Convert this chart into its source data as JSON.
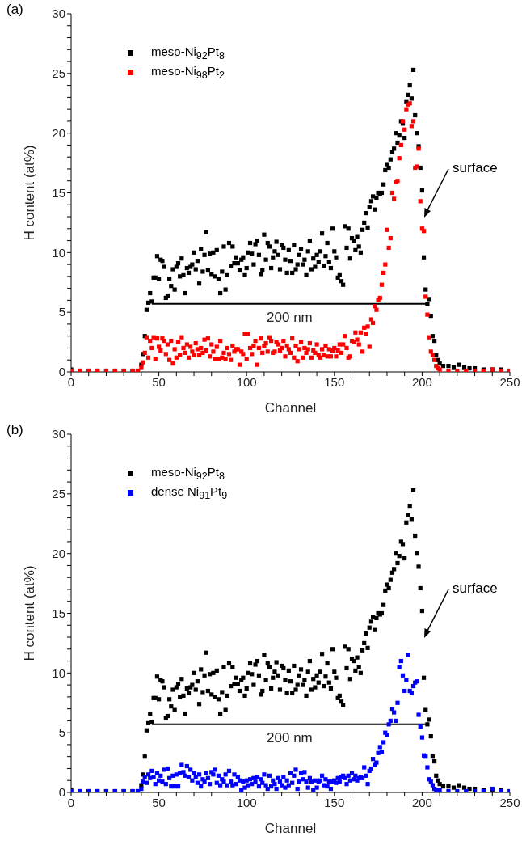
{
  "chart_data": [
    {
      "type": "scatter",
      "xlabel": "Channel",
      "ylabel": "H content (at%)",
      "xlim": [
        0,
        250
      ],
      "ylim": [
        0,
        30
      ],
      "xticks": [
        0,
        {
          "value": 10,
          "label": null
        },
        {
          "value": 20,
          "label": null
        },
        {
          "value": 30,
          "label": null
        },
        {
          "value": 40,
          "label": null
        },
        50,
        {
          "value": 60,
          "label": null
        },
        {
          "value": 70,
          "label": null
        },
        {
          "value": 80,
          "label": null
        },
        {
          "value": 90,
          "label": null
        },
        100,
        {
          "value": 110,
          "label": null
        },
        {
          "value": 120,
          "label": null
        },
        {
          "value": 130,
          "label": null
        },
        {
          "value": 140,
          "label": null
        },
        150,
        {
          "value": 160,
          "label": null
        },
        {
          "value": 170,
          "label": null
        },
        {
          "value": 180,
          "label": null
        },
        {
          "value": 190,
          "label": null
        },
        200,
        {
          "value": 210,
          "label": null
        },
        {
          "value": 220,
          "label": null
        },
        {
          "value": 230,
          "label": null
        },
        {
          "value": 240,
          "label": null
        },
        250
      ],
      "yticks": [
        0,
        {
          "value": 1,
          "label": null
        },
        {
          "value": 2,
          "label": null
        },
        {
          "value": 3,
          "label": null
        },
        {
          "value": 4,
          "label": null
        },
        5,
        {
          "value": 6,
          "label": null
        },
        {
          "value": 7,
          "label": null
        },
        {
          "value": 8,
          "label": null
        },
        {
          "value": 9,
          "label": null
        },
        10,
        {
          "value": 11,
          "label": null
        },
        {
          "value": 12,
          "label": null
        },
        {
          "value": 13,
          "label": null
        },
        {
          "value": 14,
          "label": null
        },
        15,
        {
          "value": 16,
          "label": null
        },
        {
          "value": 17,
          "label": null
        },
        {
          "value": 18,
          "label": null
        },
        {
          "value": 19,
          "label": null
        },
        20,
        {
          "value": 21,
          "label": null
        },
        {
          "value": 22,
          "label": null
        },
        {
          "value": 23,
          "label": null
        },
        {
          "value": 24,
          "label": null
        },
        25,
        {
          "value": 26,
          "label": null
        },
        {
          "value": 27,
          "label": null
        },
        {
          "value": 28,
          "label": null
        },
        {
          "value": 29,
          "label": null
        },
        30
      ],
      "legend": "top left",
      "marker": "square",
      "annotations": [
        "(a)",
        "surface"
      ],
      "series": [
        {
          "name": "meso-Ni$_{92}$Pt$_{8}$",
          "color": "#000000",
          "x": [
            0,
            5,
            10,
            15,
            20,
            25,
            30,
            35,
            38,
            40,
            41,
            42,
            43,
            44,
            45,
            46,
            47,
            48,
            49,
            50,
            51,
            52,
            53,
            54,
            55,
            56,
            57,
            58,
            59,
            60,
            61,
            62,
            63,
            64,
            65,
            66,
            67,
            68,
            69,
            70,
            71,
            72,
            73,
            74,
            75,
            76,
            77,
            78,
            79,
            80,
            81,
            82,
            83,
            84,
            85,
            86,
            87,
            88,
            89,
            90,
            91,
            92,
            93,
            94,
            95,
            96,
            97,
            98,
            99,
            100,
            101,
            102,
            103,
            104,
            105,
            106,
            107,
            108,
            109,
            110,
            111,
            112,
            113,
            114,
            115,
            116,
            117,
            118,
            119,
            120,
            121,
            122,
            123,
            124,
            125,
            126,
            127,
            128,
            129,
            130,
            131,
            132,
            133,
            134,
            135,
            136,
            137,
            138,
            139,
            140,
            141,
            142,
            143,
            144,
            145,
            146,
            147,
            148,
            149,
            150,
            151,
            152,
            153,
            154,
            155,
            156,
            157,
            158,
            159,
            160,
            161,
            162,
            163,
            164,
            165,
            166,
            167,
            168,
            169,
            170,
            171,
            172,
            173,
            174,
            175,
            176,
            177,
            178,
            179,
            180,
            181,
            182,
            183,
            184,
            185,
            186,
            187,
            188,
            189,
            190,
            191,
            192,
            193,
            194,
            195,
            196,
            197,
            198,
            199,
            200,
            201,
            202,
            203,
            204,
            205,
            206,
            207,
            208,
            209,
            210,
            212,
            215,
            218,
            221,
            224,
            227,
            230,
            235,
            240,
            245,
            250
          ],
          "values": [
            0.2,
            0.1,
            0.1,
            0.1,
            0.1,
            0.1,
            0.1,
            0.1,
            0.1,
            0.6,
            1.5,
            3.0,
            5.2,
            5.8,
            6.6,
            5.9,
            7.9,
            7.9,
            9.7,
            7.8,
            9.4,
            9.3,
            8.8,
            6.2,
            6.4,
            7.8,
            7.2,
            8.6,
            6.9,
            8.8,
            9.1,
            8.0,
            9.5,
            8.1,
            6.6,
            8.7,
            8.3,
            8.8,
            9.0,
            10.0,
            8.6,
            9.3,
            7.4,
            10.3,
            8.4,
            9.8,
            11.7,
            8.5,
            9.9,
            8.2,
            10.0,
            8.0,
            10.2,
            7.8,
            6.6,
            8.4,
            10.5,
            6.9,
            8.1,
            10.8,
            8.9,
            10.5,
            9.1,
            9.6,
            9.1,
            8.5,
            9.4,
            9.6,
            8.1,
            8.7,
            10.0,
            10.8,
            9.9,
            9.0,
            10.7,
            11.0,
            9.8,
            8.2,
            8.5,
            11.5,
            9.4,
            10.8,
            10.5,
            8.7,
            9.6,
            10.1,
            10.9,
            9.8,
            8.6,
            10.6,
            10.4,
            9.4,
            8.3,
            10.2,
            9.3,
            8.3,
            10.6,
            8.6,
            9.0,
            9.8,
            10.3,
            9.0,
            9.4,
            8.1,
            10.1,
            11.0,
            8.6,
            9.5,
            8.8,
            9.8,
            9.2,
            10.1,
            11.6,
            8.9,
            9.7,
            10.8,
            9.2,
            8.7,
            12.0,
            10.1,
            9.6,
            7.9,
            8.1,
            7.6,
            7.3,
            12.2,
            10.4,
            12.0,
            9.5,
            11.2,
            11.0,
            10.2,
            11.3,
            10.5,
            10.0,
            11.9,
            12.5,
            13.3,
            12.1,
            13.8,
            14.3,
            14.7,
            13.6,
            14.6,
            15.0,
            14.9,
            15.0,
            15.7,
            16.9,
            17.4,
            17.1,
            17.8,
            18.4,
            18.7,
            20.0,
            19.2,
            19.8,
            21.0,
            20.8,
            19.6,
            22.6,
            23.2,
            24.0,
            22.9,
            25.3,
            21.5,
            20.0,
            18.9,
            17.1,
            15.2,
            9.6,
            6.9,
            5.7,
            6.1,
            4.7,
            3.0,
            2.6,
            1.4,
            1.0,
            0.7,
            0.5,
            0.5,
            0.4,
            0.6,
            0.4,
            0.3,
            0.3,
            0.2,
            0.2,
            0.2,
            0.1
          ]
        },
        {
          "name": "meso-Ni$_{98}$Pt$_{2}$",
          "color": "#ff0000",
          "x": [
            0,
            5,
            10,
            15,
            20,
            25,
            30,
            35,
            38,
            40,
            41,
            42,
            43,
            44,
            45,
            46,
            47,
            48,
            49,
            50,
            51,
            52,
            53,
            54,
            55,
            56,
            57,
            58,
            59,
            60,
            61,
            62,
            63,
            64,
            65,
            66,
            67,
            68,
            69,
            70,
            71,
            72,
            73,
            74,
            75,
            76,
            77,
            78,
            79,
            80,
            81,
            82,
            83,
            84,
            85,
            86,
            87,
            88,
            89,
            90,
            91,
            92,
            93,
            94,
            95,
            96,
            97,
            98,
            99,
            100,
            101,
            102,
            103,
            104,
            105,
            106,
            107,
            108,
            109,
            110,
            111,
            112,
            113,
            114,
            115,
            116,
            117,
            118,
            119,
            120,
            121,
            122,
            123,
            124,
            125,
            126,
            127,
            128,
            129,
            130,
            131,
            132,
            133,
            134,
            135,
            136,
            137,
            138,
            139,
            140,
            141,
            142,
            143,
            144,
            145,
            146,
            147,
            148,
            149,
            150,
            151,
            152,
            153,
            154,
            155,
            156,
            157,
            158,
            159,
            160,
            161,
            162,
            163,
            164,
            165,
            166,
            167,
            168,
            169,
            170,
            171,
            172,
            173,
            174,
            175,
            176,
            177,
            178,
            179,
            180,
            181,
            182,
            183,
            184,
            185,
            186,
            187,
            188,
            189,
            190,
            191,
            192,
            193,
            194,
            195,
            196,
            197,
            198,
            199,
            200,
            201,
            202,
            203,
            204,
            205,
            206,
            207,
            208,
            209,
            210,
            215,
            220,
            225,
            230,
            235,
            240,
            245,
            250
          ],
          "values": [
            0.1,
            0.1,
            0.1,
            0.1,
            0.1,
            0.1,
            0.1,
            0.1,
            0.1,
            0.4,
            0.8,
            1.6,
            2.9,
            1.2,
            2.6,
            2.0,
            2.9,
            1.1,
            2.8,
            2.1,
            1.8,
            2.8,
            2.6,
            1.5,
            2.3,
            1.0,
            2.6,
            0.7,
            1.9,
            1.2,
            2.5,
            1.4,
            2.9,
            2.0,
            1.6,
            2.3,
            1.2,
            2.1,
            1.7,
            1.4,
            2.4,
            1.9,
            1.4,
            2.0,
            1.6,
            2.7,
            1.8,
            2.8,
            1.3,
            2.3,
            1.7,
            1.1,
            2.1,
            1.1,
            2.6,
            1.2,
            1.6,
            1.1,
            2.0,
            1.5,
            1.0,
            2.2,
            1.7,
            1.9,
            1.9,
            0.6,
            1.7,
            1.5,
            3.2,
            1.1,
            3.2,
            2.0,
            1.5,
            2.2,
            2.6,
            0.6,
            2.0,
            2.8,
            1.6,
            2.2,
            2.4,
            1.7,
            2.9,
            2.6,
            1.6,
            1.7,
            2.5,
            2.3,
            1.8,
            2.0,
            2.6,
            1.3,
            2.2,
            1.9,
            1.6,
            2.8,
            1.2,
            2.2,
            0.9,
            1.9,
            2.5,
            1.2,
            2.0,
            1.6,
            1.9,
            2.4,
            1.2,
            1.8,
            1.6,
            2.3,
            1.4,
            1.2,
            1.9,
            1.4,
            2.2,
            1.3,
            1.9,
            1.3,
            1.8,
            2.0,
            1.3,
            1.8,
            2.3,
            1.6,
            2.3,
            3.0,
            2.0,
            1.2,
            1.3,
            2.6,
            2.5,
            3.3,
            2.7,
            2.3,
            3.3,
            1.7,
            3.7,
            3.2,
            3.8,
            2.1,
            4.4,
            4.1,
            5.5,
            5.2,
            6.0,
            6.2,
            7.3,
            8.3,
            9.0,
            11.9,
            10.4,
            11.2,
            15.0,
            14.5,
            15.9,
            16.0,
            17.9,
            19.0,
            21.0,
            20.3,
            22.0,
            22.4,
            22.5,
            20.6,
            21.0,
            17.1,
            17.2,
            18.7,
            14.3,
            12.0,
            11.8,
            6.3,
            4.8,
            2.9,
            1.7,
            1.4,
            1.0,
            0.5,
            0.3,
            0.2,
            0.1,
            0.1,
            0.1,
            0.1,
            0.1,
            0.2,
            0.1,
            0.1
          ]
        },
        {
          "type": "line",
          "name": "200 nm",
          "color": "#000000",
          "marker": "none",
          "x": [
            46,
            203
          ],
          "values": [
            5.7,
            5.7
          ]
        }
      ]
    },
    {
      "type": "scatter",
      "xlabel": "Channel",
      "ylabel": "H content (at%)",
      "xlim": [
        0,
        250
      ],
      "ylim": [
        0,
        30
      ],
      "xticks": [
        0,
        {
          "value": 10,
          "label": null
        },
        {
          "value": 20,
          "label": null
        },
        {
          "value": 30,
          "label": null
        },
        {
          "value": 40,
          "label": null
        },
        50,
        {
          "value": 60,
          "label": null
        },
        {
          "value": 70,
          "label": null
        },
        {
          "value": 80,
          "label": null
        },
        {
          "value": 90,
          "label": null
        },
        100,
        {
          "value": 110,
          "label": null
        },
        {
          "value": 120,
          "label": null
        },
        {
          "value": 130,
          "label": null
        },
        {
          "value": 140,
          "label": null
        },
        150,
        {
          "value": 160,
          "label": null
        },
        {
          "value": 170,
          "label": null
        },
        {
          "value": 180,
          "label": null
        },
        {
          "value": 190,
          "label": null
        },
        200,
        {
          "value": 210,
          "label": null
        },
        {
          "value": 220,
          "label": null
        },
        {
          "value": 230,
          "label": null
        },
        {
          "value": 240,
          "label": null
        },
        250
      ],
      "yticks": [
        0,
        {
          "value": 1,
          "label": null
        },
        {
          "value": 2,
          "label": null
        },
        {
          "value": 3,
          "label": null
        },
        {
          "value": 4,
          "label": null
        },
        5,
        {
          "value": 6,
          "label": null
        },
        {
          "value": 7,
          "label": null
        },
        {
          "value": 8,
          "label": null
        },
        {
          "value": 9,
          "label": null
        },
        10,
        {
          "value": 11,
          "label": null
        },
        {
          "value": 12,
          "label": null
        },
        {
          "value": 13,
          "label": null
        },
        {
          "value": 14,
          "label": null
        },
        15,
        {
          "value": 16,
          "label": null
        },
        {
          "value": 17,
          "label": null
        },
        {
          "value": 18,
          "label": null
        },
        {
          "value": 19,
          "label": null
        },
        20,
        {
          "value": 21,
          "label": null
        },
        {
          "value": 22,
          "label": null
        },
        {
          "value": 23,
          "label": null
        },
        {
          "value": 24,
          "label": null
        },
        25,
        {
          "value": 26,
          "label": null
        },
        {
          "value": 27,
          "label": null
        },
        {
          "value": 28,
          "label": null
        },
        {
          "value": 29,
          "label": null
        },
        30
      ],
      "legend": "top left",
      "marker": "square",
      "annotations": [
        "(b)",
        "surface"
      ],
      "series": [
        {
          "name": "meso-Ni$_{92}$Pt$_{8}$",
          "color": "#000000",
          "x": [
            0,
            5,
            10,
            15,
            20,
            25,
            30,
            35,
            38,
            40,
            41,
            42,
            43,
            44,
            45,
            46,
            47,
            48,
            49,
            50,
            51,
            52,
            53,
            54,
            55,
            56,
            57,
            58,
            59,
            60,
            61,
            62,
            63,
            64,
            65,
            66,
            67,
            68,
            69,
            70,
            71,
            72,
            73,
            74,
            75,
            76,
            77,
            78,
            79,
            80,
            81,
            82,
            83,
            84,
            85,
            86,
            87,
            88,
            89,
            90,
            91,
            92,
            93,
            94,
            95,
            96,
            97,
            98,
            99,
            100,
            101,
            102,
            103,
            104,
            105,
            106,
            107,
            108,
            109,
            110,
            111,
            112,
            113,
            114,
            115,
            116,
            117,
            118,
            119,
            120,
            121,
            122,
            123,
            124,
            125,
            126,
            127,
            128,
            129,
            130,
            131,
            132,
            133,
            134,
            135,
            136,
            137,
            138,
            139,
            140,
            141,
            142,
            143,
            144,
            145,
            146,
            147,
            148,
            149,
            150,
            151,
            152,
            153,
            154,
            155,
            156,
            157,
            158,
            159,
            160,
            161,
            162,
            163,
            164,
            165,
            166,
            167,
            168,
            169,
            170,
            171,
            172,
            173,
            174,
            175,
            176,
            177,
            178,
            179,
            180,
            181,
            182,
            183,
            184,
            185,
            186,
            187,
            188,
            189,
            190,
            191,
            192,
            193,
            194,
            195,
            196,
            197,
            198,
            199,
            200,
            201,
            202,
            203,
            204,
            205,
            206,
            207,
            208,
            209,
            210,
            212,
            215,
            218,
            221,
            224,
            227,
            230,
            235,
            240,
            245,
            250
          ],
          "values": [
            0.2,
            0.1,
            0.1,
            0.1,
            0.1,
            0.1,
            0.1,
            0.1,
            0.1,
            0.6,
            1.5,
            3.0,
            5.2,
            5.8,
            6.6,
            5.9,
            7.9,
            7.9,
            9.7,
            7.8,
            9.4,
            9.3,
            8.8,
            6.2,
            6.4,
            7.8,
            7.2,
            8.6,
            6.9,
            8.8,
            9.1,
            8.0,
            9.5,
            8.1,
            6.6,
            8.7,
            8.3,
            8.8,
            9.0,
            10.0,
            8.6,
            9.3,
            7.4,
            10.3,
            8.4,
            9.8,
            11.7,
            8.5,
            9.9,
            8.2,
            10.0,
            8.0,
            10.2,
            7.8,
            6.6,
            8.4,
            10.5,
            6.9,
            8.1,
            10.8,
            8.9,
            10.5,
            9.1,
            9.6,
            9.1,
            8.5,
            9.4,
            9.6,
            8.1,
            8.7,
            10.0,
            10.8,
            9.9,
            9.0,
            10.7,
            11.0,
            9.8,
            8.2,
            8.5,
            11.5,
            9.4,
            10.8,
            10.5,
            8.7,
            9.6,
            10.1,
            10.9,
            9.8,
            8.6,
            10.6,
            10.4,
            9.4,
            8.3,
            10.2,
            9.3,
            8.3,
            10.6,
            8.6,
            9.0,
            9.8,
            10.3,
            9.0,
            9.4,
            8.1,
            10.1,
            11.0,
            8.6,
            9.5,
            8.8,
            9.8,
            9.2,
            10.1,
            11.6,
            8.9,
            9.7,
            10.8,
            9.2,
            8.7,
            12.0,
            10.1,
            9.6,
            7.9,
            8.1,
            7.6,
            7.3,
            12.2,
            10.4,
            12.0,
            9.5,
            11.2,
            11.0,
            10.2,
            11.3,
            10.5,
            10.0,
            11.9,
            12.5,
            13.3,
            12.1,
            13.8,
            14.3,
            14.7,
            13.6,
            14.6,
            15.0,
            14.9,
            15.0,
            15.7,
            16.9,
            17.4,
            17.1,
            17.8,
            18.4,
            18.7,
            20.0,
            19.2,
            19.8,
            21.0,
            20.8,
            19.6,
            22.6,
            23.2,
            24.0,
            22.9,
            25.3,
            21.5,
            20.0,
            18.9,
            17.1,
            15.2,
            9.6,
            6.9,
            5.7,
            6.1,
            4.7,
            3.0,
            2.6,
            1.4,
            1.0,
            0.7,
            0.5,
            0.5,
            0.4,
            0.6,
            0.4,
            0.3,
            0.3,
            0.2,
            0.2,
            0.2,
            0.1
          ]
        },
        {
          "name": "dense Ni$_{91}$Pt$_{9}$",
          "color": "#0000ff",
          "x": [
            0,
            5,
            10,
            15,
            20,
            25,
            30,
            35,
            38,
            40,
            41,
            42,
            43,
            44,
            45,
            46,
            47,
            48,
            49,
            50,
            51,
            52,
            53,
            54,
            55,
            56,
            57,
            58,
            59,
            60,
            61,
            62,
            63,
            64,
            65,
            66,
            67,
            68,
            69,
            70,
            71,
            72,
            73,
            74,
            75,
            76,
            77,
            78,
            79,
            80,
            81,
            82,
            83,
            84,
            85,
            86,
            87,
            88,
            89,
            90,
            91,
            92,
            93,
            94,
            95,
            96,
            97,
            98,
            99,
            100,
            101,
            102,
            103,
            104,
            105,
            106,
            107,
            108,
            109,
            110,
            111,
            112,
            113,
            114,
            115,
            116,
            117,
            118,
            119,
            120,
            121,
            122,
            123,
            124,
            125,
            126,
            127,
            128,
            129,
            130,
            131,
            132,
            133,
            134,
            135,
            136,
            137,
            138,
            139,
            140,
            141,
            142,
            143,
            144,
            145,
            146,
            147,
            148,
            149,
            150,
            151,
            152,
            153,
            154,
            155,
            156,
            157,
            158,
            159,
            160,
            161,
            162,
            163,
            164,
            165,
            166,
            167,
            168,
            169,
            170,
            171,
            172,
            173,
            174,
            175,
            176,
            177,
            178,
            179,
            180,
            181,
            182,
            183,
            184,
            185,
            186,
            187,
            188,
            189,
            190,
            191,
            192,
            193,
            194,
            195,
            196,
            197,
            198,
            199,
            200,
            201,
            202,
            203,
            204,
            205,
            206,
            207,
            208,
            210,
            215,
            220,
            225,
            230,
            235,
            240,
            245,
            250
          ],
          "values": [
            0.1,
            0.1,
            0.1,
            0.1,
            0.1,
            0.1,
            0.1,
            0.1,
            0.1,
            0.3,
            0.9,
            1.3,
            0.8,
            1.5,
            1.2,
            1.8,
            1.3,
            0.7,
            1.6,
            1.0,
            1.4,
            0.9,
            1.9,
            0.7,
            2.0,
            1.2,
            0.5,
            1.4,
            0.5,
            1.5,
            0.5,
            1.6,
            2.3,
            1.7,
            1.4,
            2.2,
            1.3,
            1.9,
            1.0,
            1.6,
            1.3,
            0.8,
            1.5,
            0.5,
            1.1,
            0.9,
            1.6,
            1.2,
            0.7,
            1.7,
            1.5,
            1.9,
            0.8,
            1.4,
            0.6,
            1.1,
            0.9,
            1.5,
            0.6,
            1.8,
            0.9,
            0.6,
            1.5,
            0.7,
            1.3,
            1.0,
            0.2,
            0.9,
            0.4,
            1.0,
            0.6,
            1.1,
            0.7,
            1.2,
            0.9,
            1.3,
            0.5,
            1.1,
            0.8,
            1.5,
            0.6,
            0.3,
            1.4,
            0.5,
            1.0,
            0.7,
            0.3,
            1.2,
            0.9,
            0.6,
            1.3,
            0.4,
            1.0,
            0.6,
            1.6,
            0.8,
            1.4,
            1.9,
            0.3,
            0.9,
            1.6,
            1.1,
            1.7,
            0.9,
            0.4,
            1.2,
            0.9,
            0.2,
            1.0,
            0.4,
            0.9,
            1.0,
            1.4,
            0.6,
            1.1,
            0.5,
            0.9,
            0.3,
            0.9,
            1.0,
            0.8,
            1.2,
            0.9,
            1.3,
            1.4,
            1.2,
            0.7,
            1.4,
            1.0,
            1.6,
            1.1,
            1.4,
            1.0,
            1.2,
            1.3,
            1.2,
            2.1,
            1.4,
            0.7,
            1.8,
            2.0,
            2.8,
            2.3,
            2.5,
            3.3,
            3.8,
            3.4,
            4.2,
            5.0,
            4.8,
            5.7,
            6.0,
            7.0,
            6.7,
            6.0,
            7.5,
            10.5,
            11.0,
            9.8,
            8.5,
            9.4,
            11.5,
            8.5,
            8.3,
            8.9,
            9.2,
            9.3,
            6.5,
            5.5,
            4.6,
            3.1,
            3.0,
            2.1,
            1.1,
            0.9,
            0.6,
            0.3,
            0.2,
            0.2,
            0.1,
            0.1,
            0.1,
            0.1,
            0.1,
            0.3,
            0.1,
            0.1
          ]
        },
        {
          "type": "line",
          "name": "200 nm",
          "color": "#000000",
          "marker": "none",
          "x": [
            46,
            203
          ],
          "values": [
            5.7,
            5.7
          ]
        }
      ]
    }
  ]
}
